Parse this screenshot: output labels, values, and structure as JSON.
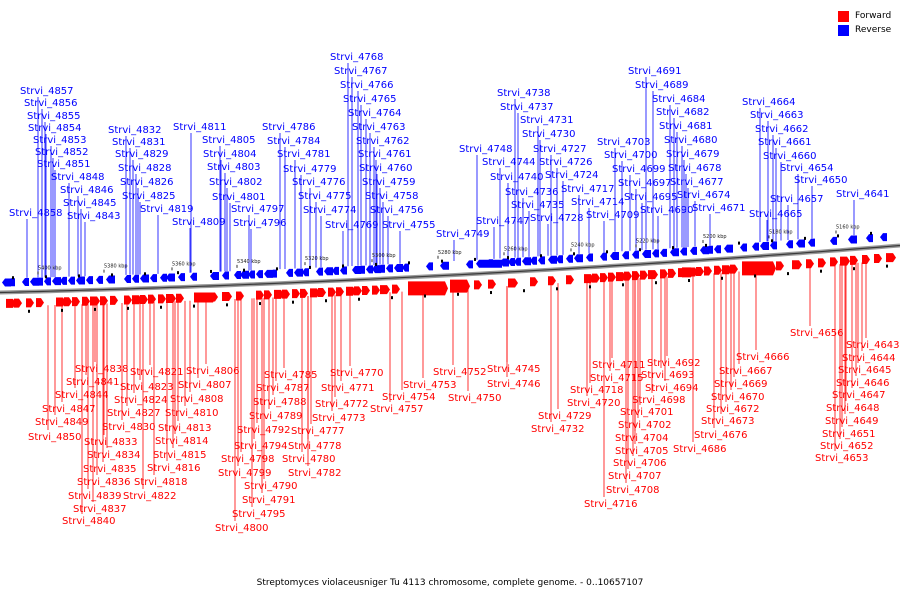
{
  "legend": {
    "forward_label": "Forward",
    "reverse_label": "Reverse",
    "forward_color": "#ff0000",
    "reverse_color": "#0000ff"
  },
  "caption": "Streptomyces violaceusniger Tu 4113 chromosome, complete genome. - 0..10657107",
  "ticks": [
    "5400 kbp",
    "5380 kbp",
    "5360 kbp",
    "5340 kbp",
    "5320 kbp",
    "5300 kbp",
    "5280 kbp",
    "5260 kbp",
    "5240 kbp",
    "5220 kbp",
    "5200 kbp",
    "5180 kbp",
    "5160 kbp"
  ],
  "reverse_genes": [
    "Strvi_4858",
    "Strvi_4857",
    "Strvi_4856",
    "Strvi_4855",
    "Strvi_4854",
    "Strvi_4853",
    "Strvi_4852",
    "Strvi_4851",
    "Strvi_4848",
    "Strvi_4846",
    "Strvi_4845",
    "Strvi_4843",
    "Strvi_4832",
    "Strvi_4831",
    "Strvi_4829",
    "Strvi_4828",
    "Strvi_4826",
    "Strvi_4825",
    "Strvi_4819",
    "Strvi_4811",
    "Strvi_4809",
    "Strvi_4805",
    "Strvi_4804",
    "Strvi_4803",
    "Strvi_4802",
    "Strvi_4801",
    "Strvi_4797",
    "Strvi_4796",
    "Strvi_4786",
    "Strvi_4784",
    "Strvi_4781",
    "Strvi_4779",
    "Strvi_4776",
    "Strvi_4775",
    "Strvi_4774",
    "Strvi_4768",
    "Strvi_4767",
    "Strvi_4766",
    "Strvi_4765",
    "Strvi_4764",
    "Strvi_4763",
    "Strvi_4762",
    "Strvi_4761",
    "Strvi_4760",
    "Strvi_4759",
    "Strvi_4758",
    "Strvi_4756",
    "Strvi_4769",
    "Strvi_4755",
    "Strvi_4749",
    "Strvi_4748",
    "Strvi_4747",
    "Strvi_4744",
    "Strvi_4740",
    "Strvi_4738",
    "Strvi_4737",
    "Strvi_4736",
    "Strvi_4735",
    "Strvi_4731",
    "Strvi_4730",
    "Strvi_4728",
    "Strvi_4727",
    "Strvi_4726",
    "Strvi_4724",
    "Strvi_4717",
    "Strvi_4714",
    "Strvi_4709",
    "Strvi_4703",
    "Strvi_4700",
    "Strvi_4699",
    "Strvi_4697",
    "Strvi_4695",
    "Strvi_4691",
    "Strvi_4689",
    "Strvi_4690",
    "Strvi_4684",
    "Strvi_4682",
    "Strvi_4681",
    "Strvi_4680",
    "Strvi_4679",
    "Strvi_4678",
    "Strvi_4677",
    "Strvi_4674",
    "Strvi_4671",
    "Strvi_4664",
    "Strvi_4663",
    "Strvi_4662",
    "Strvi_4661",
    "Strvi_4660",
    "Strvi_4665",
    "Strvi_4657",
    "Strvi_4654",
    "Strvi_4650",
    "Strvi_4641"
  ],
  "forward_genes": [
    "Strvi_4838",
    "Strvi_4841",
    "Strvi_4844",
    "Strvi_4847",
    "Strvi_4849",
    "Strvi_4850",
    "Strvi_4833",
    "Strvi_4834",
    "Strvi_4835",
    "Strvi_4836",
    "Strvi_4839",
    "Strvi_4837",
    "Strvi_4840",
    "Strvi_4830",
    "Strvi_4827",
    "Strvi_4824",
    "Strvi_4823",
    "Strvi_4821",
    "Strvi_4822",
    "Strvi_4818",
    "Strvi_4816",
    "Strvi_4815",
    "Strvi_4814",
    "Strvi_4813",
    "Strvi_4810",
    "Strvi_4808",
    "Strvi_4807",
    "Strvi_4806",
    "Strvi_4798",
    "Strvi_4799",
    "Strvi_4795",
    "Strvi_4800",
    "Strvi_4794",
    "Strvi_4792",
    "Strvi_4790",
    "Strvi_4791",
    "Strvi_4789",
    "Strvi_4788",
    "Strvi_4787",
    "Strvi_4785",
    "Strvi_4782",
    "Strvi_4780",
    "Strvi_4778",
    "Strvi_4777",
    "Strvi_4773",
    "Strvi_4772",
    "Strvi_4771",
    "Strvi_4770",
    "Strvi_4757",
    "Strvi_4754",
    "Strvi_4753",
    "Strvi_4752",
    "Strvi_4750",
    "Strvi_4746",
    "Strvi_4745",
    "Strvi_4732",
    "Strvi_4729",
    "Strvi_4720",
    "Strvi_4718",
    "Strvi_4716",
    "Strvi_4715",
    "Strvi_4711",
    "Strvi_4708",
    "Strvi_4707",
    "Strvi_4706",
    "Strvi_4705",
    "Strvi_4704",
    "Strvi_4702",
    "Strvi_4701",
    "Strvi_4698",
    "Strvi_4694",
    "Strvi_4693",
    "Strvi_4692",
    "Strvi_4686",
    "Strvi_4676",
    "Strvi_4673",
    "Strvi_4672",
    "Strvi_4670",
    "Strvi_4669",
    "Strvi_4667",
    "Strvi_4666",
    "Strvi_4656",
    "Strvi_4653",
    "Strvi_4652",
    "Strvi_4651",
    "Strvi_4649",
    "Strvi_4648",
    "Strvi_4647",
    "Strvi_4646",
    "Strvi_4645",
    "Strvi_4644",
    "Strvi_4643"
  ]
}
